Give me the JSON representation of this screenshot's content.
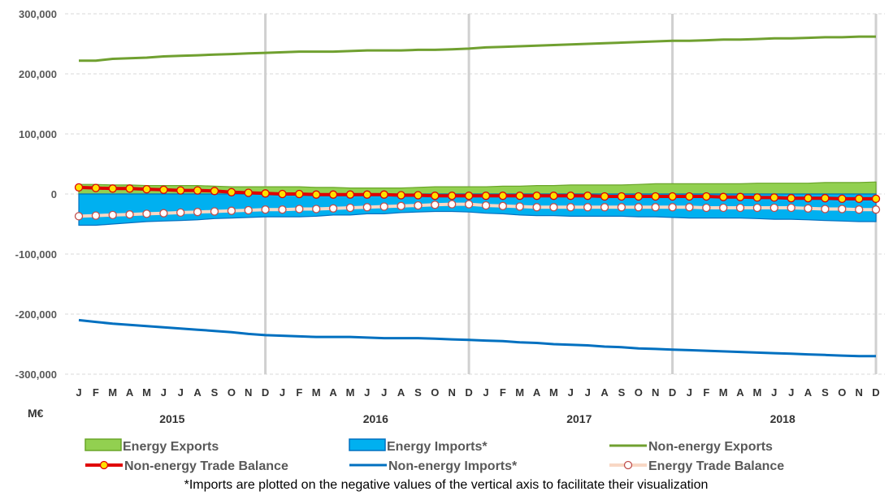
{
  "chart_data": {
    "type": "area",
    "unit_label": "M€",
    "y_ticks": [
      "300,000",
      "200,000",
      "100,000",
      "0",
      "-100,000",
      "-200,000",
      "-300,000"
    ],
    "ylim": [
      -300000,
      300000
    ],
    "grid": true,
    "month_labels": [
      "J",
      "F",
      "M",
      "A",
      "M",
      "J",
      "J",
      "A",
      "S",
      "O",
      "N",
      "D"
    ],
    "years": [
      "2015",
      "2016",
      "2017",
      "2018"
    ],
    "footnote": "*Imports are plotted on the negative values of the vertical axis to facilitate their visualization",
    "legend_position": "bottom",
    "series": [
      {
        "name": "Energy Exports",
        "kind": "area",
        "color": "#92D050",
        "edge": "#6AA628",
        "values": [
          16000,
          16000,
          15000,
          15000,
          14000,
          14000,
          14000,
          14000,
          13000,
          12000,
          12000,
          12000,
          12000,
          12000,
          11000,
          11000,
          10000,
          10000,
          10000,
          10000,
          11000,
          12000,
          12000,
          12000,
          12000,
          13000,
          13000,
          14000,
          14000,
          15000,
          15000,
          15000,
          15000,
          16000,
          17000,
          17000,
          17000,
          17000,
          17000,
          17000,
          18000,
          18000,
          18000,
          18000,
          19000,
          19000,
          19000,
          20000
        ]
      },
      {
        "name": "Energy Imports*",
        "kind": "area",
        "color": "#00B0F0",
        "edge": "#0070C0",
        "values": [
          -52000,
          -52000,
          -50000,
          -48000,
          -46000,
          -45000,
          -44000,
          -43000,
          -41000,
          -40000,
          -39000,
          -38000,
          -38000,
          -38000,
          -37000,
          -35000,
          -35000,
          -33000,
          -33000,
          -31000,
          -30000,
          -29000,
          -29000,
          -30000,
          -32000,
          -33000,
          -35000,
          -36000,
          -36000,
          -37000,
          -37000,
          -37000,
          -37000,
          -38000,
          -38000,
          -39000,
          -40000,
          -40000,
          -40000,
          -40000,
          -41000,
          -42000,
          -42000,
          -43000,
          -44000,
          -45000,
          -46000,
          -46000
        ]
      },
      {
        "name": "Non-energy Exports",
        "kind": "line",
        "color": "#70A030",
        "values": [
          222000,
          222000,
          225000,
          226000,
          227000,
          229000,
          230000,
          231000,
          232000,
          233000,
          234000,
          235000,
          236000,
          237000,
          237000,
          237000,
          238000,
          239000,
          239000,
          239000,
          240000,
          240000,
          241000,
          242000,
          244000,
          245000,
          246000,
          247000,
          248000,
          249000,
          250000,
          251000,
          252000,
          253000,
          254000,
          255000,
          255000,
          256000,
          257000,
          257000,
          258000,
          259000,
          259000,
          260000,
          261000,
          261000,
          262000,
          262000
        ]
      },
      {
        "name": "Non-energy Trade Balance",
        "kind": "line-marker",
        "color": "#E00000",
        "marker_fill": "#FFE000",
        "values": [
          11000,
          10000,
          9000,
          9000,
          8000,
          7000,
          6000,
          6000,
          5000,
          3000,
          2000,
          1000,
          0,
          0,
          -1000,
          -1000,
          -1000,
          -1000,
          -1000,
          -2000,
          -2000,
          -3000,
          -3000,
          -3000,
          -3000,
          -3000,
          -3000,
          -3000,
          -3000,
          -3000,
          -3000,
          -4000,
          -4000,
          -4000,
          -4000,
          -4000,
          -4000,
          -4000,
          -5000,
          -5000,
          -6000,
          -6000,
          -7000,
          -7000,
          -7000,
          -8000,
          -8000,
          -8000
        ]
      },
      {
        "name": "Non-energy Imports*",
        "kind": "line",
        "color": "#0070C0",
        "values": [
          -210000,
          -213000,
          -216000,
          -218000,
          -220000,
          -222000,
          -224000,
          -226000,
          -228000,
          -230000,
          -233000,
          -235000,
          -236000,
          -237000,
          -238000,
          -238000,
          -238000,
          -239000,
          -240000,
          -240000,
          -240000,
          -241000,
          -242000,
          -243000,
          -244000,
          -245000,
          -247000,
          -248000,
          -250000,
          -251000,
          -252000,
          -254000,
          -255000,
          -257000,
          -258000,
          -259000,
          -260000,
          -261000,
          -262000,
          -263000,
          -264000,
          -265000,
          -266000,
          -267000,
          -268000,
          -269000,
          -270000,
          -270000
        ]
      },
      {
        "name": "Energy Trade Balance",
        "kind": "line-marker",
        "color": "#F8D7C4",
        "marker_fill": "#FFFFFF",
        "marker_edge": "#C0504D",
        "values": [
          -37000,
          -36000,
          -35000,
          -34000,
          -33000,
          -32000,
          -31000,
          -30000,
          -29000,
          -28000,
          -27000,
          -26000,
          -26000,
          -25000,
          -25000,
          -24000,
          -23000,
          -22000,
          -21000,
          -20000,
          -19000,
          -18000,
          -17000,
          -17000,
          -19000,
          -20000,
          -21000,
          -22000,
          -22000,
          -22000,
          -22000,
          -22000,
          -22000,
          -22000,
          -22000,
          -22000,
          -22000,
          -23000,
          -23000,
          -23000,
          -23000,
          -23000,
          -23000,
          -24000,
          -25000,
          -25000,
          -26000,
          -26000
        ]
      }
    ]
  }
}
